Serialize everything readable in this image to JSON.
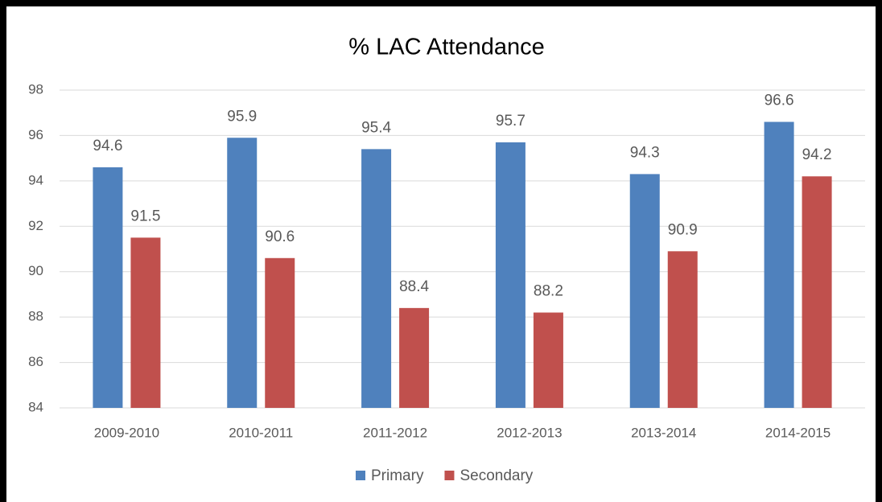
{
  "chart_data": {
    "type": "bar",
    "title": "% LAC Attendance",
    "categories": [
      "2009-2010",
      "2010-2011",
      "2011-2012",
      "2012-2013",
      "2013-2014",
      "2014-2015"
    ],
    "series": [
      {
        "name": "Primary",
        "color": "#4f81bd",
        "values": [
          94.6,
          95.9,
          95.4,
          95.7,
          94.3,
          96.6
        ]
      },
      {
        "name": "Secondary",
        "color": "#c0504d",
        "values": [
          91.5,
          90.6,
          88.4,
          88.2,
          90.9,
          94.2
        ]
      }
    ],
    "ylim": [
      84,
      98
    ],
    "yticks": [
      84,
      86,
      88,
      90,
      92,
      94,
      96,
      98
    ],
    "grid": true,
    "legend": "bottom"
  }
}
